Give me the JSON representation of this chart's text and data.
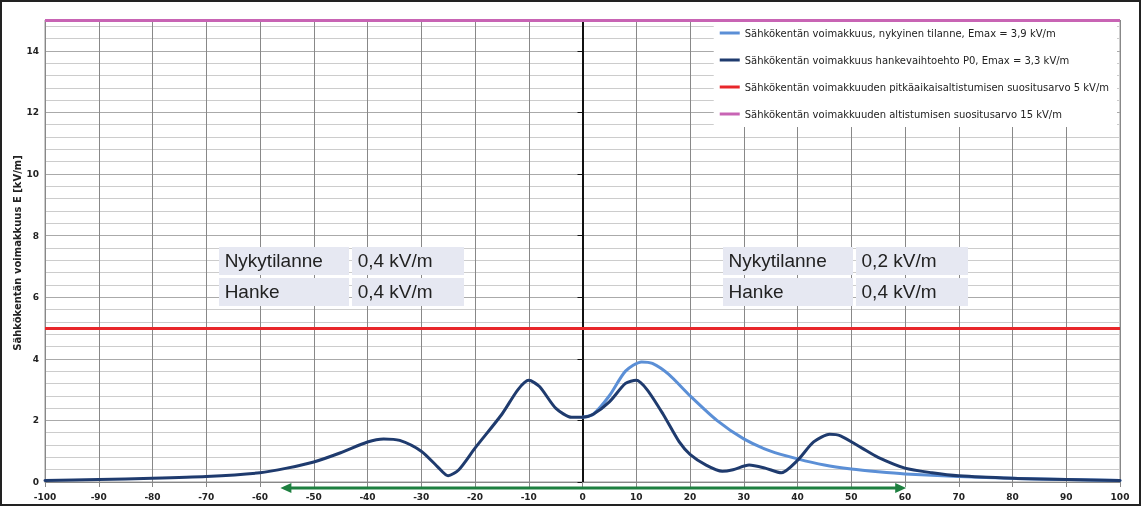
{
  "chart_data": {
    "type": "line",
    "ylabel": "Sähkökentän voimakkuus E [kV/m]",
    "xlim": [
      -100,
      100
    ],
    "xticks": [
      -100,
      -90,
      -80,
      -70,
      -60,
      -50,
      -40,
      -30,
      -20,
      -10,
      0,
      10,
      20,
      30,
      40,
      50,
      60,
      70,
      80,
      90,
      100
    ],
    "ylim": [
      0,
      15
    ],
    "yticks": [
      0,
      2,
      4,
      6,
      8,
      10,
      12,
      14
    ],
    "grid": true,
    "legend": "top right",
    "marker": "none",
    "line_style": "solid",
    "series": [
      {
        "name": "Sähkökentän voimakkuus, nykyinen tilanne, Emax = 3,9 kV/m",
        "color": "#5b8fd6",
        "x": [
          0,
          2,
          5,
          8,
          11,
          13,
          16,
          20,
          25,
          30,
          35,
          40,
          45,
          50,
          55,
          60,
          70,
          80,
          90,
          100
        ],
        "values": [
          2.1,
          2.2,
          2.8,
          3.6,
          3.9,
          3.85,
          3.5,
          2.8,
          2.0,
          1.4,
          1.0,
          0.75,
          0.55,
          0.42,
          0.33,
          0.26,
          0.18,
          0.12,
          0.08,
          0.05
        ]
      },
      {
        "name": "Sähkökentän voimakkuus hankevaihtoehto P0, Emax = 3,3 kV/m",
        "color": "#1f3b6e",
        "x": [
          -100,
          -90,
          -80,
          -70,
          -60,
          -55,
          -50,
          -45,
          -40,
          -37,
          -34,
          -30,
          -27,
          -25,
          -23,
          -20,
          -15,
          -12,
          -10,
          -8,
          -5,
          -2,
          0,
          2,
          5,
          8,
          10,
          12,
          15,
          18,
          20,
          23,
          26,
          28,
          31,
          34,
          37,
          40,
          43,
          46,
          48,
          52,
          55,
          60,
          65,
          70,
          80,
          90,
          100
        ],
        "values": [
          0.05,
          0.08,
          0.12,
          0.18,
          0.3,
          0.45,
          0.65,
          0.95,
          1.3,
          1.4,
          1.35,
          1.0,
          0.5,
          0.2,
          0.4,
          1.1,
          2.2,
          3.0,
          3.3,
          3.1,
          2.4,
          2.1,
          2.1,
          2.2,
          2.6,
          3.2,
          3.3,
          3.0,
          2.2,
          1.3,
          0.9,
          0.55,
          0.35,
          0.4,
          0.55,
          0.45,
          0.3,
          0.7,
          1.3,
          1.55,
          1.5,
          1.1,
          0.8,
          0.45,
          0.3,
          0.2,
          0.12,
          0.08,
          0.05
        ]
      }
    ],
    "ref_lines": [
      {
        "axis": "y",
        "value": 5,
        "label": "Sähkökentän voimakkuuden pitkäaikaisaltistumisen suositusarvo 5 kV/m",
        "color": "#e8262a",
        "line_style": "solid"
      },
      {
        "axis": "y",
        "value": 15,
        "label": "Sähkökentän voimakkuuden altistumisen suositusarvo 15 kV/m",
        "color": "#c864b4",
        "line_style": "solid"
      }
    ],
    "annotations": [
      "Nykytilanne",
      "0,4 kV/m",
      "Hanke",
      "0,4 kV/m",
      "Nykytilanne",
      "0,2 kV/m",
      "Hanke",
      "0,4 kV/m"
    ]
  }
}
